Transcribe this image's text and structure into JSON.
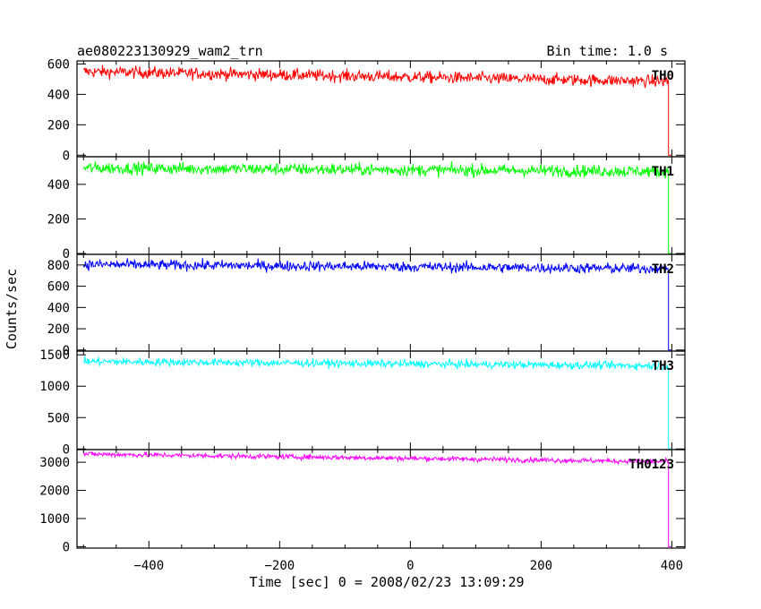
{
  "header": {
    "title": "ae080223130929_wam2_trn",
    "bin_time": "Bin time: 1.0 s"
  },
  "chart_data": {
    "type": "line",
    "title": "ae080223130929_wam2_trn",
    "subtitle": "Bin time: 1.0 s",
    "xlabel": "Time [sec] 0 = 2008/02/23 13:09:29",
    "ylabel": "Counts/sec",
    "xlim": [
      -510,
      420
    ],
    "x_ticks": [
      -400,
      -200,
      0,
      200,
      400
    ],
    "grid": false,
    "panels": [
      {
        "name": "TH0",
        "color": "#ff0000",
        "ylim": [
          -10,
          620
        ],
        "y_ticks": [
          0,
          200,
          400,
          600
        ],
        "x_start": -500,
        "x_drop": 395,
        "x_end": 400,
        "level_start": 550,
        "level_end": 485,
        "noise": 28,
        "tail_value": 0
      },
      {
        "name": "TH1",
        "color": "#00ff00",
        "ylim": [
          -5,
          560
        ],
        "y_ticks": [
          0,
          200,
          400
        ],
        "x_start": -500,
        "x_drop": 395,
        "x_end": 400,
        "level_start": 495,
        "level_end": 475,
        "noise": 25,
        "tail_value": 0
      },
      {
        "name": "TH2",
        "color": "#0000ff",
        "ylim": [
          -10,
          900
        ],
        "y_ticks": [
          0,
          200,
          400,
          600,
          800
        ],
        "x_start": -500,
        "x_drop": 395,
        "x_end": 400,
        "level_start": 805,
        "level_end": 765,
        "noise": 35,
        "tail_value": 0
      },
      {
        "name": "TH3",
        "color": "#00ffff",
        "ylim": [
          -10,
          1560
        ],
        "y_ticks": [
          0,
          500,
          1000,
          1500
        ],
        "x_start": -500,
        "x_drop": 395,
        "x_end": 400,
        "level_start": 1395,
        "level_end": 1325,
        "noise": 45,
        "tail_value": 0
      },
      {
        "name": "TH0123",
        "color": "#ff00ff",
        "ylim": [
          -50,
          3450
        ],
        "y_ticks": [
          0,
          1000,
          2000,
          3000
        ],
        "x_start": -500,
        "x_drop": 395,
        "x_end": 400,
        "level_start": 3290,
        "level_end": 3020,
        "noise": 65,
        "tail_value": 0
      }
    ]
  }
}
